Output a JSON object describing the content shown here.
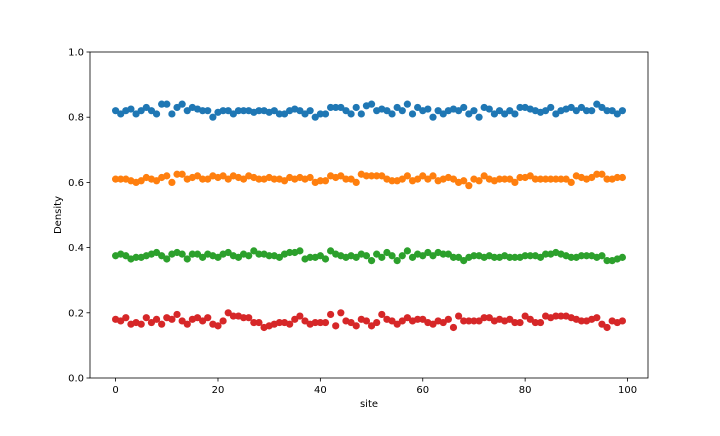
{
  "chart_data": {
    "type": "scatter",
    "title": "",
    "xlabel": "site",
    "ylabel": "Density",
    "xlim": [
      -5,
      104
    ],
    "ylim": [
      0.0,
      1.0
    ],
    "xticks": [
      "0",
      "20",
      "40",
      "60",
      "80",
      "100"
    ],
    "xtick_values": [
      0,
      20,
      40,
      60,
      80,
      100
    ],
    "yticks": [
      "0.0",
      "0.2",
      "0.4",
      "0.6",
      "0.8",
      "1.0"
    ],
    "ytick_values": [
      0.0,
      0.2,
      0.4,
      0.6,
      0.8,
      1.0
    ],
    "grid": false,
    "legend": "none",
    "x": [
      0,
      1,
      2,
      3,
      4,
      5,
      6,
      7,
      8,
      9,
      10,
      11,
      12,
      13,
      14,
      15,
      16,
      17,
      18,
      19,
      20,
      21,
      22,
      23,
      24,
      25,
      26,
      27,
      28,
      29,
      30,
      31,
      32,
      33,
      34,
      35,
      36,
      37,
      38,
      39,
      40,
      41,
      42,
      43,
      44,
      45,
      46,
      47,
      48,
      49,
      50,
      51,
      52,
      53,
      54,
      55,
      56,
      57,
      58,
      59,
      60,
      61,
      62,
      63,
      64,
      65,
      66,
      67,
      68,
      69,
      70,
      71,
      72,
      73,
      74,
      75,
      76,
      77,
      78,
      79,
      80,
      81,
      82,
      83,
      84,
      85,
      86,
      87,
      88,
      89,
      90,
      91,
      92,
      93,
      94,
      95,
      96,
      97,
      98,
      99
    ],
    "series": [
      {
        "color": "#1f77b4",
        "values": [
          0.82,
          0.81,
          0.82,
          0.825,
          0.81,
          0.82,
          0.83,
          0.82,
          0.81,
          0.84,
          0.84,
          0.81,
          0.83,
          0.84,
          0.82,
          0.83,
          0.825,
          0.82,
          0.82,
          0.8,
          0.815,
          0.82,
          0.82,
          0.81,
          0.82,
          0.82,
          0.82,
          0.815,
          0.82,
          0.82,
          0.815,
          0.82,
          0.81,
          0.81,
          0.82,
          0.825,
          0.82,
          0.81,
          0.82,
          0.8,
          0.81,
          0.81,
          0.83,
          0.83,
          0.83,
          0.82,
          0.81,
          0.83,
          0.81,
          0.835,
          0.84,
          0.82,
          0.825,
          0.82,
          0.81,
          0.83,
          0.82,
          0.84,
          0.81,
          0.83,
          0.82,
          0.825,
          0.8,
          0.82,
          0.81,
          0.82,
          0.825,
          0.82,
          0.83,
          0.81,
          0.82,
          0.8,
          0.83,
          0.825,
          0.81,
          0.82,
          0.81,
          0.82,
          0.81,
          0.83,
          0.83,
          0.825,
          0.82,
          0.815,
          0.82,
          0.83,
          0.81,
          0.82,
          0.825,
          0.83,
          0.82,
          0.83,
          0.82,
          0.82,
          0.84,
          0.83,
          0.82,
          0.82,
          0.81,
          0.82
        ]
      },
      {
        "color": "#ff7f0e",
        "values": [
          0.61,
          0.61,
          0.61,
          0.605,
          0.6,
          0.605,
          0.615,
          0.61,
          0.605,
          0.615,
          0.62,
          0.6,
          0.625,
          0.625,
          0.61,
          0.615,
          0.62,
          0.61,
          0.61,
          0.62,
          0.615,
          0.62,
          0.61,
          0.62,
          0.615,
          0.61,
          0.62,
          0.615,
          0.61,
          0.61,
          0.615,
          0.61,
          0.61,
          0.605,
          0.615,
          0.61,
          0.615,
          0.61,
          0.615,
          0.6,
          0.605,
          0.605,
          0.62,
          0.615,
          0.62,
          0.61,
          0.61,
          0.6,
          0.625,
          0.62,
          0.62,
          0.62,
          0.62,
          0.61,
          0.605,
          0.605,
          0.61,
          0.62,
          0.605,
          0.61,
          0.62,
          0.61,
          0.62,
          0.605,
          0.61,
          0.615,
          0.61,
          0.6,
          0.605,
          0.59,
          0.61,
          0.605,
          0.62,
          0.61,
          0.605,
          0.61,
          0.61,
          0.61,
          0.6,
          0.615,
          0.615,
          0.62,
          0.61,
          0.61,
          0.61,
          0.61,
          0.61,
          0.61,
          0.61,
          0.6,
          0.62,
          0.615,
          0.61,
          0.615,
          0.625,
          0.625,
          0.61,
          0.61,
          0.615,
          0.615
        ]
      },
      {
        "color": "#2ca02c",
        "values": [
          0.375,
          0.38,
          0.375,
          0.365,
          0.37,
          0.37,
          0.375,
          0.38,
          0.385,
          0.375,
          0.365,
          0.38,
          0.385,
          0.38,
          0.365,
          0.38,
          0.38,
          0.37,
          0.38,
          0.375,
          0.37,
          0.38,
          0.385,
          0.375,
          0.37,
          0.38,
          0.375,
          0.39,
          0.38,
          0.38,
          0.375,
          0.375,
          0.37,
          0.38,
          0.385,
          0.385,
          0.39,
          0.365,
          0.37,
          0.37,
          0.375,
          0.365,
          0.39,
          0.38,
          0.375,
          0.37,
          0.375,
          0.37,
          0.38,
          0.375,
          0.36,
          0.38,
          0.37,
          0.385,
          0.375,
          0.36,
          0.375,
          0.39,
          0.37,
          0.38,
          0.375,
          0.385,
          0.375,
          0.385,
          0.38,
          0.38,
          0.37,
          0.37,
          0.36,
          0.37,
          0.375,
          0.375,
          0.37,
          0.375,
          0.37,
          0.37,
          0.375,
          0.37,
          0.37,
          0.37,
          0.375,
          0.375,
          0.375,
          0.37,
          0.38,
          0.38,
          0.385,
          0.38,
          0.375,
          0.37,
          0.37,
          0.375,
          0.375,
          0.375,
          0.37,
          0.375,
          0.36,
          0.36,
          0.365,
          0.37
        ]
      },
      {
        "color": "#d62728",
        "values": [
          0.18,
          0.175,
          0.185,
          0.165,
          0.17,
          0.165,
          0.185,
          0.17,
          0.18,
          0.165,
          0.185,
          0.18,
          0.195,
          0.175,
          0.165,
          0.18,
          0.185,
          0.175,
          0.185,
          0.165,
          0.16,
          0.175,
          0.2,
          0.19,
          0.19,
          0.185,
          0.185,
          0.17,
          0.17,
          0.155,
          0.16,
          0.165,
          0.17,
          0.17,
          0.165,
          0.18,
          0.19,
          0.175,
          0.165,
          0.17,
          0.17,
          0.17,
          0.195,
          0.16,
          0.2,
          0.175,
          0.17,
          0.16,
          0.18,
          0.175,
          0.16,
          0.17,
          0.195,
          0.18,
          0.175,
          0.165,
          0.175,
          0.185,
          0.175,
          0.18,
          0.18,
          0.17,
          0.165,
          0.175,
          0.17,
          0.18,
          0.155,
          0.19,
          0.175,
          0.175,
          0.175,
          0.175,
          0.185,
          0.185,
          0.175,
          0.18,
          0.175,
          0.18,
          0.17,
          0.17,
          0.19,
          0.18,
          0.17,
          0.17,
          0.19,
          0.185,
          0.19,
          0.19,
          0.19,
          0.185,
          0.18,
          0.175,
          0.175,
          0.18,
          0.185,
          0.165,
          0.155,
          0.175,
          0.17,
          0.175
        ]
      }
    ]
  }
}
